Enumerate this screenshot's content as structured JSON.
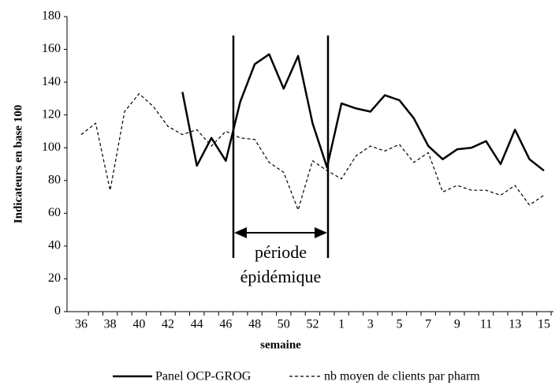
{
  "chart_data": {
    "type": "line",
    "categories": [
      "36",
      null,
      "38",
      null,
      "40",
      null,
      "42",
      null,
      "44",
      null,
      "46",
      null,
      "48",
      null,
      "50",
      null,
      "52",
      null,
      "1",
      null,
      "3",
      null,
      "5",
      null,
      "7",
      null,
      "9",
      null,
      "11",
      null,
      "13",
      null,
      "15"
    ],
    "series": [
      {
        "name": "Panel OCP-GROG",
        "color": "#000000",
        "dash": false,
        "values": [
          null,
          null,
          null,
          null,
          null,
          null,
          null,
          134,
          89,
          106,
          92,
          128,
          151,
          157,
          136,
          156,
          115,
          88,
          127,
          124,
          122,
          132,
          129,
          118,
          101,
          93,
          99,
          100,
          104,
          90,
          111,
          93,
          86
        ]
      },
      {
        "name": "nb moyen de clients par pharm",
        "color": "#000000",
        "dash": true,
        "values": [
          108,
          115,
          74,
          122,
          133,
          125,
          113,
          108,
          111,
          101,
          110,
          106,
          105,
          91,
          85,
          62,
          92,
          86,
          81,
          95,
          101,
          98,
          102,
          91,
          97,
          73,
          77,
          74,
          74,
          71,
          77,
          65,
          71
        ]
      }
    ],
    "ylim": [
      0,
      180
    ],
    "yticks": [
      0,
      20,
      40,
      60,
      80,
      100,
      120,
      140,
      160,
      180
    ],
    "x_label": "semaine",
    "y_label": "Indicateurs en base 100",
    "annotations": [
      "période",
      "épidémique"
    ],
    "grid": false
  }
}
